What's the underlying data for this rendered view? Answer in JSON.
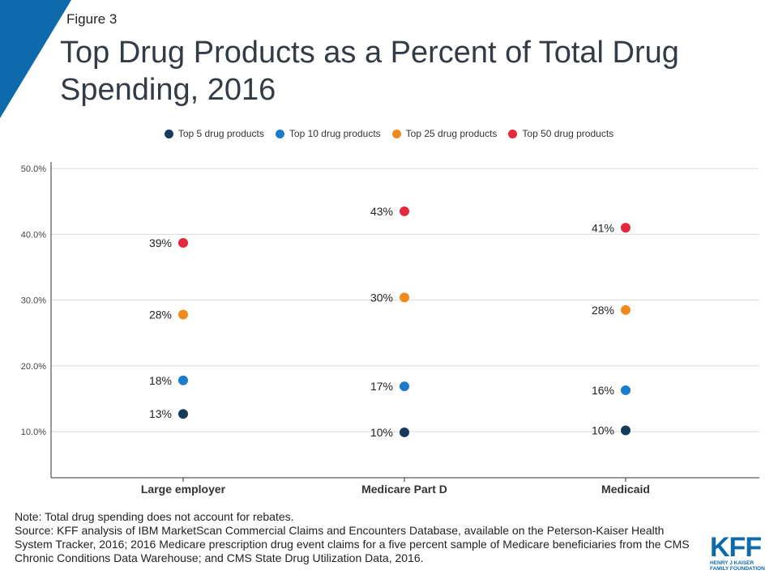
{
  "figure_label": "Figure 3",
  "title": "Top Drug Products as a Percent of Total Drug Spending, 2016",
  "note": "Note: Total drug spending does not account for rebates.",
  "source": "Source: KFF analysis of IBM MarketScan Commercial Claims and Encounters  Database, available on the Peterson-Kaiser Health System Tracker, 2016; 2016 Medicare prescription drug event claims for a five percent sample of Medicare beneficiaries from the CMS Chronic Conditions Data Warehouse; and CMS State Drug Utilization Data, 2016.",
  "logo": {
    "mark": "KFF",
    "line1": "HENRY J KAISER",
    "line2": "FAMILY FOUNDATION"
  },
  "colors": {
    "brand": "#0f6aab",
    "top5": "#163a5c",
    "top10": "#1a7ccb",
    "top25": "#ee8a1e",
    "top50": "#e5293d"
  },
  "chart_data": {
    "type": "scatter",
    "title": "Top Drug Products as a Percent of Total Drug Spending, 2016",
    "categories": [
      "Large employer",
      "Medicare Part D",
      "Medicaid"
    ],
    "yticks": [
      "10.0%",
      "20.0%",
      "30.0%",
      "40.0%",
      "50.0%"
    ],
    "ylim": [
      3,
      51
    ],
    "grid": true,
    "legend_position": "top",
    "series": [
      {
        "name": "Top 5 drug products",
        "color": "#163a5c",
        "values": [
          12.7,
          9.9,
          10.2
        ],
        "labels": [
          "13%",
          "10%",
          "10%"
        ]
      },
      {
        "name": "Top 10 drug products",
        "color": "#1a7ccb",
        "values": [
          17.8,
          16.9,
          16.3
        ],
        "labels": [
          "18%",
          "17%",
          "16%"
        ]
      },
      {
        "name": "Top 25 drug products",
        "color": "#ee8a1e",
        "values": [
          27.8,
          30.4,
          28.5
        ],
        "labels": [
          "28%",
          "30%",
          "28%"
        ]
      },
      {
        "name": "Top 50 drug products",
        "color": "#e5293d",
        "values": [
          38.7,
          43.5,
          41.0
        ],
        "labels": [
          "39%",
          "43%",
          "41%"
        ]
      }
    ]
  }
}
